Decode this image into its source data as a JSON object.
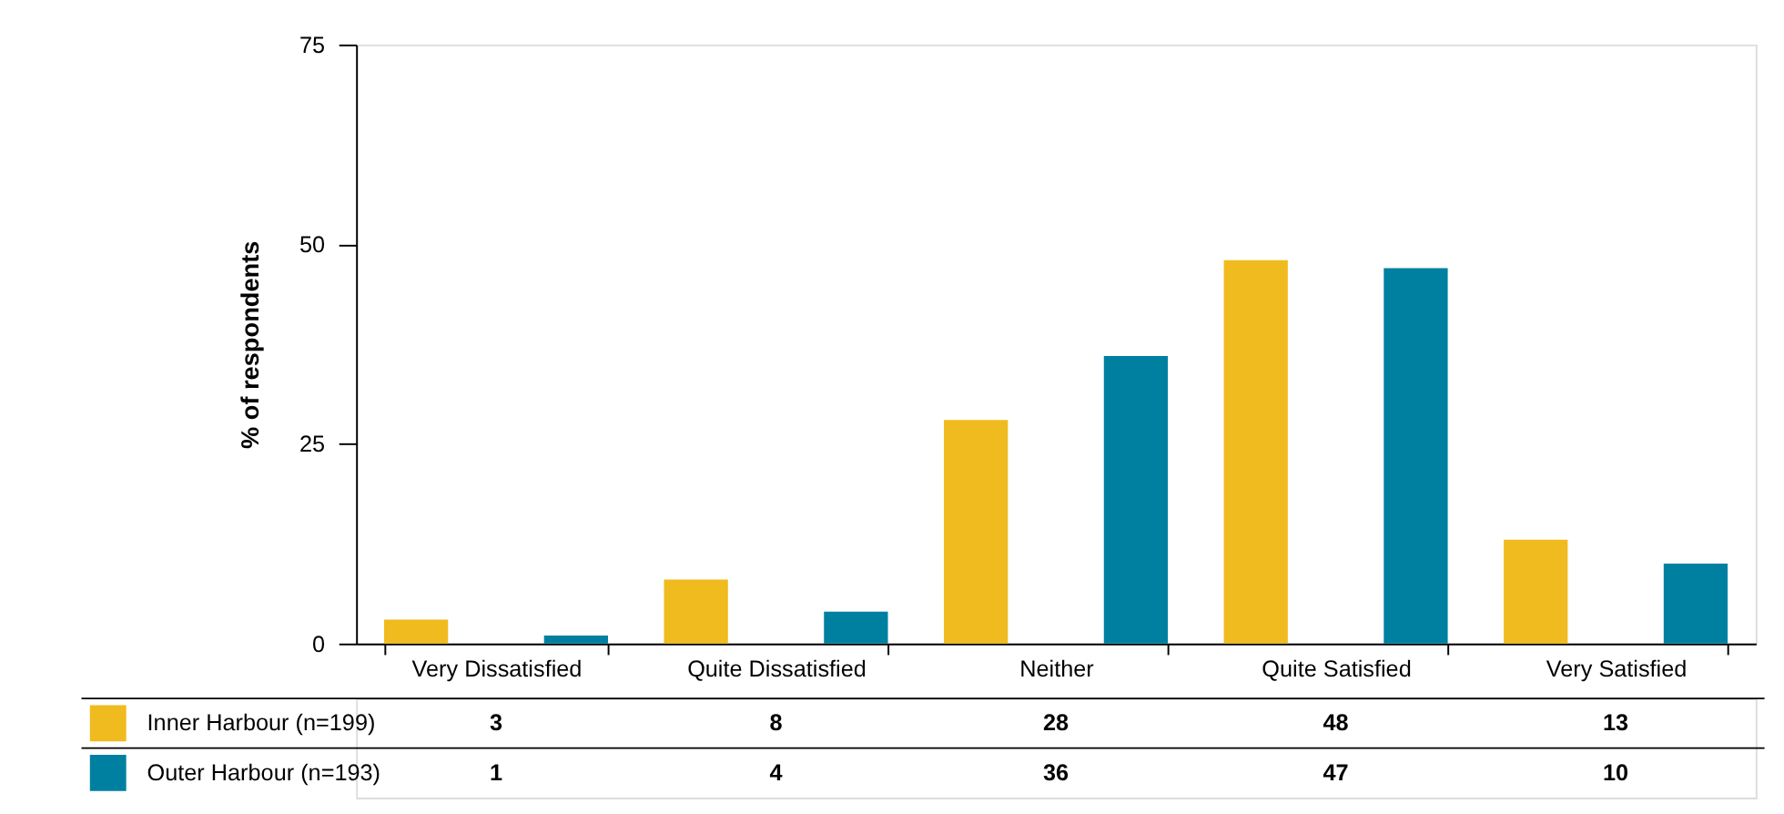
{
  "chart_data": {
    "type": "bar",
    "ylabel": "% of respondents",
    "categories": [
      "Very Dissatisfied",
      "Quite Dissatisfied",
      "Neither",
      "Quite Satisfied",
      "Very Satisfied"
    ],
    "series": [
      {
        "name": "Inner Harbour (n=199)",
        "color": "#f0bb1e",
        "values": [
          3,
          8,
          28,
          48,
          13
        ]
      },
      {
        "name": "Outer Harbour (n=193)",
        "color": "#0080a0",
        "values": [
          1,
          4,
          36,
          47,
          10
        ]
      }
    ],
    "ylim": [
      0,
      75
    ],
    "yticks": [
      0,
      25,
      50,
      75
    ],
    "grid": false,
    "legend": "bottom",
    "data_labels": true
  }
}
